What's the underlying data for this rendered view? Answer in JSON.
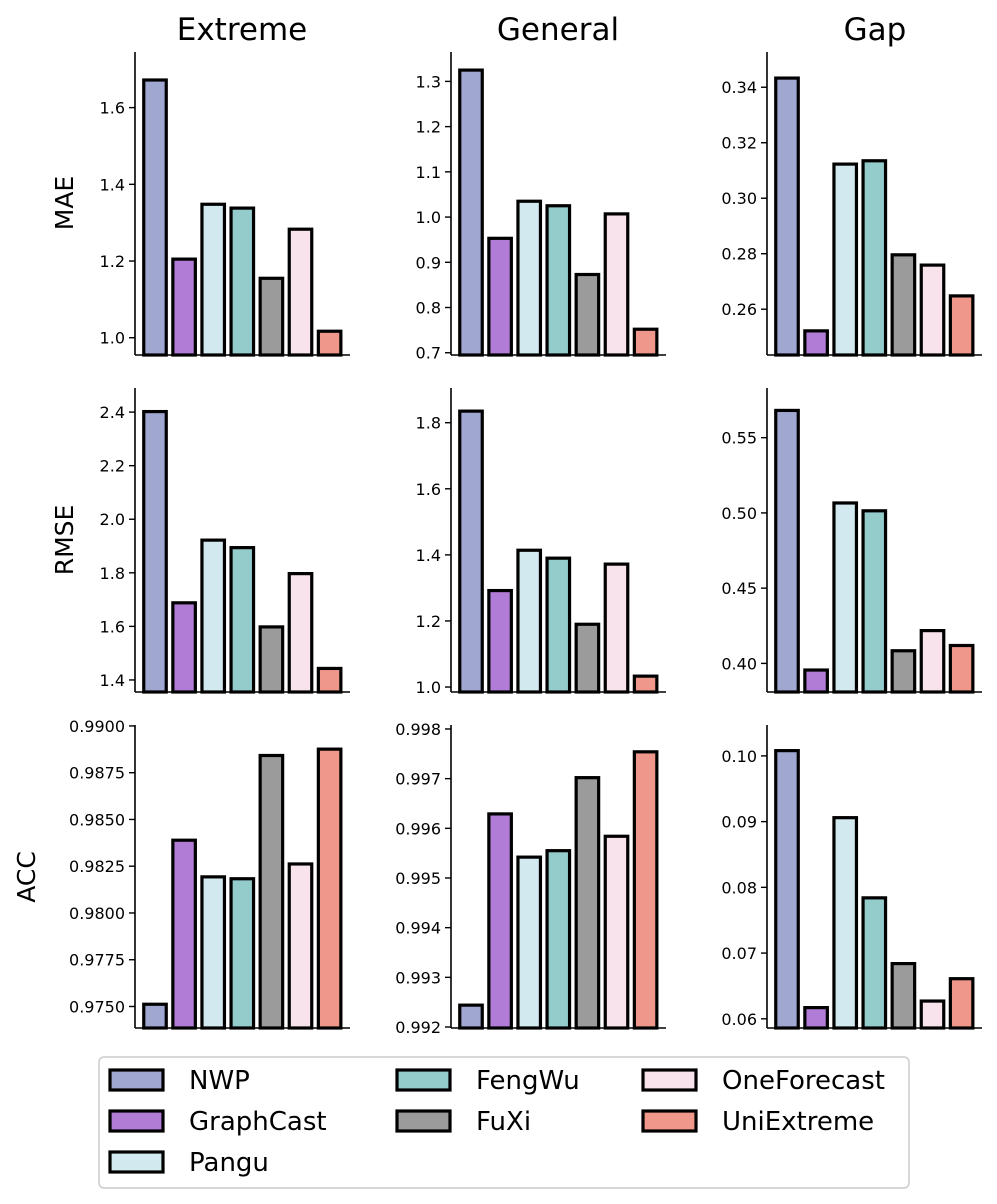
{
  "chart_data": {
    "type": "bar",
    "layout": "3x3 grid of bar charts",
    "column_titles": [
      "Extreme",
      "General",
      "Gap"
    ],
    "row_labels": [
      "MAE",
      "RMSE",
      "ACC"
    ],
    "categories": [
      "NWP",
      "GraphCast",
      "Pangu",
      "FengWu",
      "FuXi",
      "OneForecast",
      "UniExtreme"
    ],
    "colors": [
      "#a0a8d2",
      "#b07cd6",
      "#d2e9ef",
      "#94cbcb",
      "#9b9b9b",
      "#f8e2ec",
      "#ef978a"
    ],
    "edge_color": "#000000",
    "legend": {
      "placement": "bottom-center",
      "entries": [
        "NWP",
        "GraphCast",
        "Pangu",
        "FengWu",
        "FuXi",
        "OneForecast",
        "UniExtreme"
      ]
    },
    "panels": [
      {
        "row": "MAE",
        "column": "Extreme",
        "values": [
          1.672,
          1.205,
          1.348,
          1.338,
          1.155,
          1.283,
          1.017
        ],
        "ylim": [
          0.955,
          1.745
        ],
        "ticks": [
          1.0,
          1.2,
          1.4,
          1.6
        ],
        "tick_labels": [
          "1.0",
          "1.2",
          "1.4",
          "1.6"
        ]
      },
      {
        "row": "MAE",
        "column": "General",
        "values": [
          1.325,
          0.953,
          1.035,
          1.025,
          0.873,
          1.007,
          0.752
        ],
        "ylim": [
          0.695,
          1.365
        ],
        "ticks": [
          0.7,
          0.8,
          0.9,
          1.0,
          1.1,
          1.2,
          1.3
        ],
        "tick_labels": [
          "0.7",
          "0.8",
          "0.9",
          "1.0",
          "1.1",
          "1.2",
          "1.3"
        ]
      },
      {
        "row": "MAE",
        "column": "Gap",
        "values": [
          0.3433,
          0.2522,
          0.3123,
          0.3135,
          0.2796,
          0.2759,
          0.2648
        ],
        "ylim": [
          0.2435,
          0.3527
        ],
        "ticks": [
          0.26,
          0.28,
          0.3,
          0.32,
          0.34
        ],
        "tick_labels": [
          "0.26",
          "0.28",
          "0.30",
          "0.32",
          "0.34"
        ]
      },
      {
        "row": "RMSE",
        "column": "Extreme",
        "values": [
          2.402,
          1.688,
          1.922,
          1.894,
          1.598,
          1.797,
          1.443
        ],
        "ylim": [
          1.355,
          2.49
        ],
        "ticks": [
          1.4,
          1.6,
          1.8,
          2.0,
          2.2,
          2.4
        ],
        "tick_labels": [
          "1.4",
          "1.6",
          "1.8",
          "2.0",
          "2.2",
          "2.4"
        ]
      },
      {
        "row": "RMSE",
        "column": "General",
        "values": [
          1.835,
          1.292,
          1.414,
          1.39,
          1.19,
          1.372,
          1.033
        ],
        "ylim": [
          0.985,
          1.905
        ],
        "ticks": [
          1.0,
          1.2,
          1.4,
          1.6,
          1.8
        ],
        "tick_labels": [
          "1.0",
          "1.2",
          "1.4",
          "1.6",
          "1.8"
        ]
      },
      {
        "row": "RMSE",
        "column": "Gap",
        "values": [
          0.5681,
          0.3956,
          0.5066,
          0.5014,
          0.4084,
          0.4218,
          0.4119
        ],
        "ylim": [
          0.381,
          0.583
        ],
        "ticks": [
          0.4,
          0.45,
          0.5,
          0.55
        ],
        "tick_labels": [
          "0.40",
          "0.45",
          "0.50",
          "0.55"
        ]
      },
      {
        "row": "ACC",
        "column": "Extreme",
        "values": [
          0.97512,
          0.98389,
          0.98193,
          0.98183,
          0.98842,
          0.98262,
          0.98876
        ],
        "ylim": [
          0.97385,
          0.99005
        ],
        "ticks": [
          0.975,
          0.9775,
          0.98,
          0.9825,
          0.985,
          0.9875,
          0.99
        ],
        "tick_labels": [
          "0.9750",
          "0.9775",
          "0.9800",
          "0.9825",
          "0.9850",
          "0.9875",
          "0.9900"
        ]
      },
      {
        "row": "ACC",
        "column": "General",
        "values": [
          0.99244,
          0.99629,
          0.99542,
          0.99555,
          0.99702,
          0.99584,
          0.99754
        ],
        "ylim": [
          0.99198,
          0.99808
        ],
        "ticks": [
          0.992,
          0.993,
          0.994,
          0.995,
          0.996,
          0.997,
          0.998
        ],
        "tick_labels": [
          "0.992",
          "0.993",
          "0.994",
          "0.995",
          "0.996",
          "0.997",
          "0.998"
        ]
      },
      {
        "row": "ACC",
        "column": "Gap",
        "values": [
          0.1008,
          0.0617,
          0.0906,
          0.0784,
          0.0684,
          0.0627,
          0.0661
        ],
        "ylim": [
          0.0586,
          0.1047
        ],
        "ticks": [
          0.06,
          0.07,
          0.08,
          0.09,
          0.1
        ],
        "tick_labels": [
          "0.06",
          "0.07",
          "0.08",
          "0.09",
          "0.10"
        ]
      }
    ]
  }
}
